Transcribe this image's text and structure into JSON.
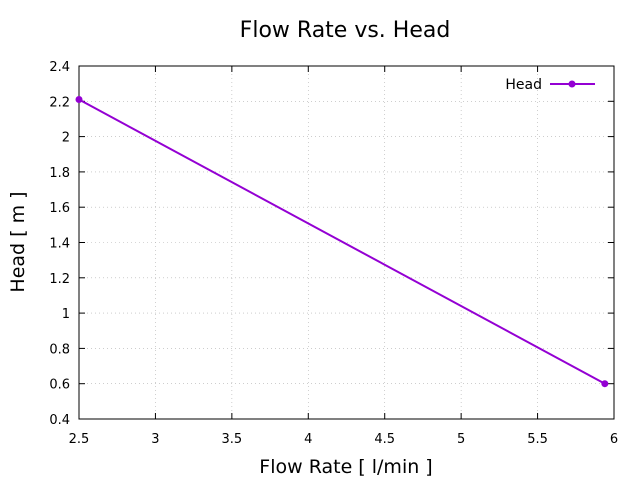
{
  "chart_data": {
    "type": "line",
    "title": "Flow Rate vs. Head",
    "xlabel": "Flow Rate [ l/min ]",
    "ylabel": "Head [ m ]",
    "xlim": [
      2.5,
      6
    ],
    "ylim": [
      0.4,
      2.4
    ],
    "xticks": [
      2.5,
      3,
      3.5,
      4,
      4.5,
      5,
      5.5,
      6
    ],
    "yticks": [
      0.4,
      0.6,
      0.8,
      1,
      1.2,
      1.4,
      1.6,
      1.8,
      2,
      2.2,
      2.4
    ],
    "xtick_labels": [
      "2.5",
      "3",
      "3.5",
      "4",
      "4.5",
      "5",
      "5.5",
      "6"
    ],
    "ytick_labels": [
      "0.4",
      "0.6",
      "0.8",
      "1",
      "1.2",
      "1.4",
      "1.6",
      "1.8",
      "2",
      "2.2",
      "2.4"
    ],
    "grid": true,
    "legend_position": "top-right",
    "series": [
      {
        "name": "Head",
        "color": "#9400d3",
        "marker": "circle",
        "points": [
          {
            "x": 2.5,
            "y": 2.21
          },
          {
            "x": 5.94,
            "y": 0.6
          }
        ]
      }
    ]
  }
}
